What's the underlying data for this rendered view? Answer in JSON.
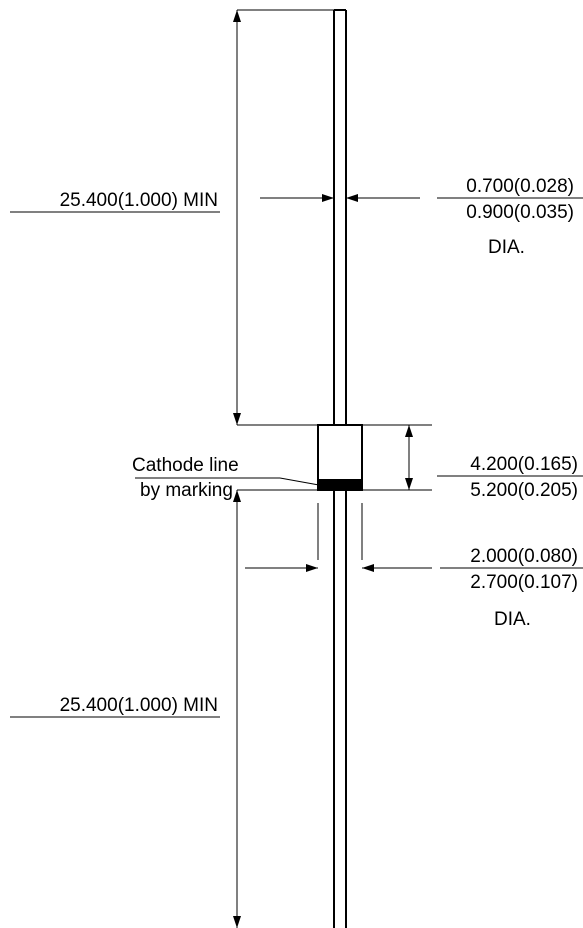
{
  "top_lead": {
    "length_label": "25.400(1.000) MIN",
    "diameter_min": "0.700(0.028)",
    "diameter_max": "0.900(0.035)",
    "diameter_suffix": "DIA."
  },
  "body": {
    "length_min": "4.200(0.165)",
    "length_max": "5.200(0.205)",
    "diameter_min": "2.000(0.080)",
    "diameter_max": "2.700(0.107)",
    "diameter_suffix": "DIA."
  },
  "cathode": {
    "label_line1": "Cathode line",
    "label_line2": "by marking"
  },
  "bottom_lead": {
    "length_label": "25.400(1.000) MIN"
  }
}
